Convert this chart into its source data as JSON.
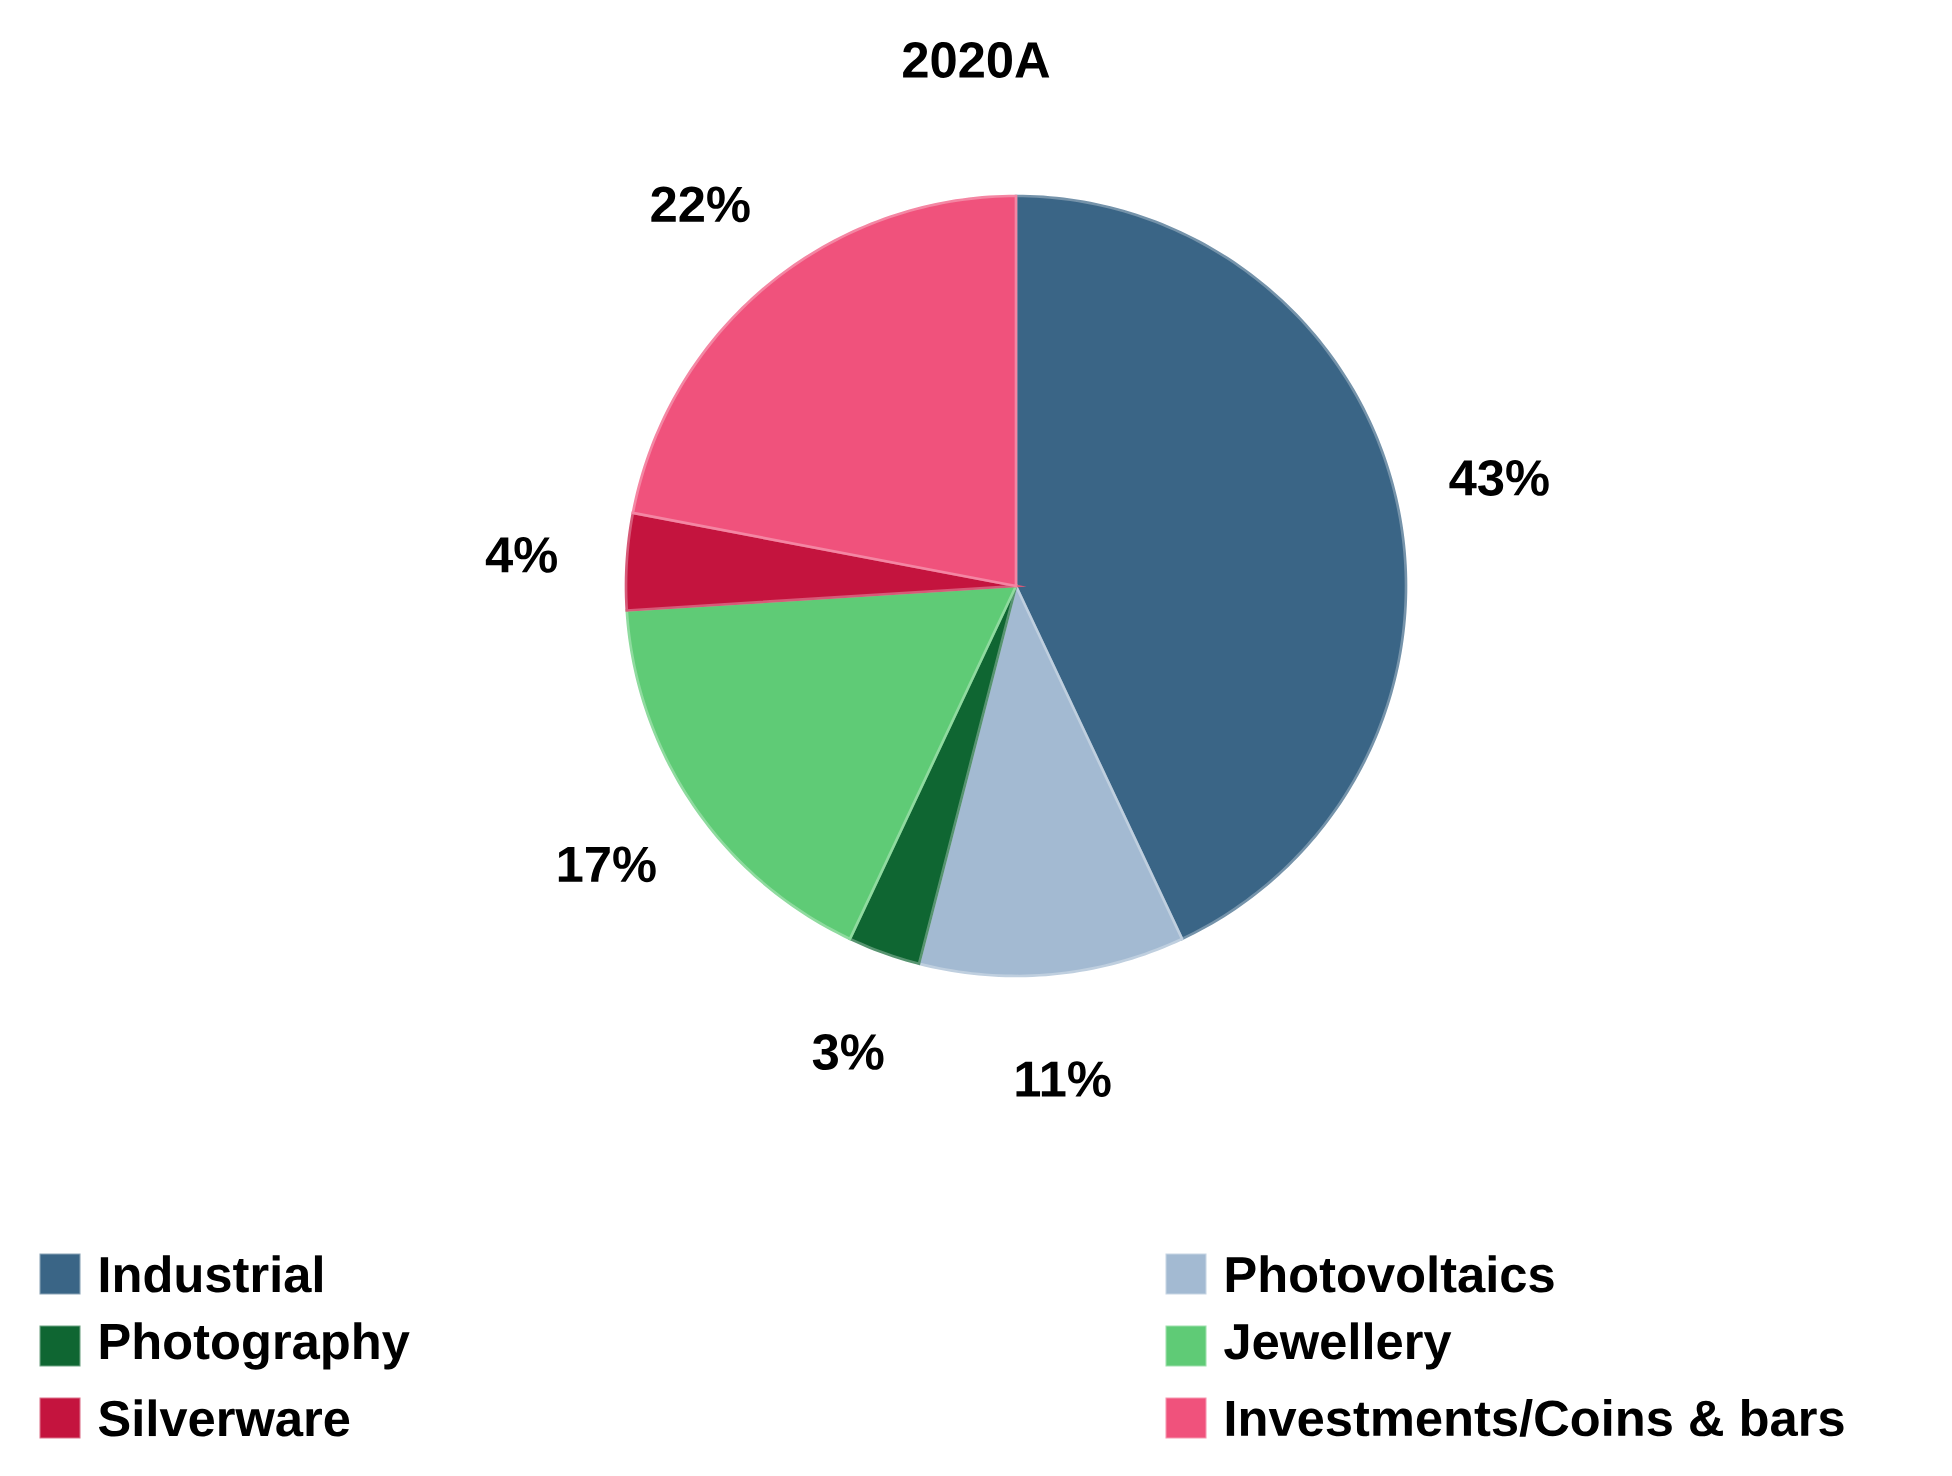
{
  "chart_data": {
    "type": "pie",
    "title": "2020A",
    "categories": [
      "Industrial",
      "Photovoltaics",
      "Photography",
      "Jewellery",
      "Silverware",
      "Investments/Coins & bars"
    ],
    "values": [
      43,
      11,
      3,
      17,
      4,
      22
    ],
    "value_labels": [
      "43%",
      "11%",
      "3%",
      "17%",
      "4%",
      "22%"
    ],
    "colors": [
      "#3a6586",
      "#a3bad2",
      "#0f6632",
      "#5fcb76",
      "#c4143e",
      "#f0527c"
    ],
    "legend": "bottom"
  }
}
